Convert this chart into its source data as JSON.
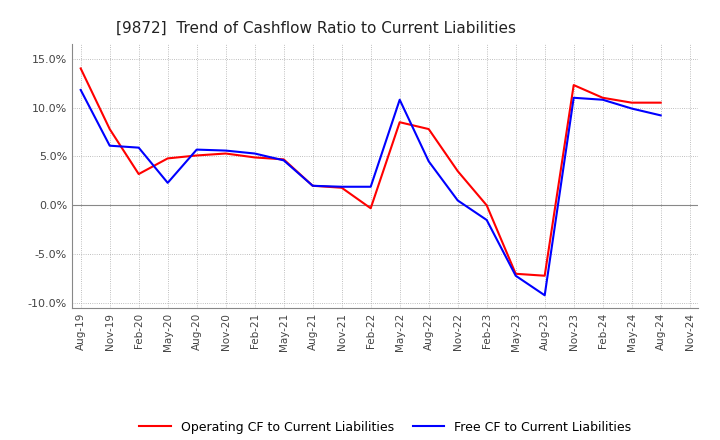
{
  "title": "[9872]  Trend of Cashflow Ratio to Current Liabilities",
  "x_labels": [
    "Aug-19",
    "Nov-19",
    "Feb-20",
    "May-20",
    "Aug-20",
    "Nov-20",
    "Feb-21",
    "May-21",
    "Aug-21",
    "Nov-21",
    "Feb-22",
    "May-22",
    "Aug-22",
    "Nov-22",
    "Feb-23",
    "May-23",
    "Aug-23",
    "Nov-23",
    "Feb-24",
    "May-24",
    "Aug-24",
    "Nov-24"
  ],
  "operating_cf": [
    14.0,
    7.8,
    3.2,
    4.8,
    5.1,
    5.3,
    4.9,
    4.7,
    2.0,
    1.8,
    -0.3,
    8.5,
    7.8,
    3.5,
    0.0,
    -7.0,
    -7.2,
    12.3,
    11.0,
    10.5,
    10.5,
    null
  ],
  "free_cf": [
    11.8,
    6.1,
    5.9,
    2.3,
    5.7,
    5.6,
    5.3,
    4.6,
    2.0,
    1.9,
    1.9,
    10.8,
    4.5,
    0.5,
    -1.5,
    -7.2,
    -9.2,
    11.0,
    10.8,
    9.9,
    9.2,
    null
  ],
  "ylim": [
    -10.5,
    16.5
  ],
  "yticks": [
    -10.0,
    -5.0,
    0.0,
    5.0,
    10.0,
    15.0
  ],
  "operating_color": "#ff0000",
  "free_color": "#0000ff",
  "grid_color": "#aaaaaa",
  "zero_line_color": "#888888",
  "background_color": "#ffffff",
  "title_fontsize": 11,
  "legend_labels": [
    "Operating CF to Current Liabilities",
    "Free CF to Current Liabilities"
  ]
}
